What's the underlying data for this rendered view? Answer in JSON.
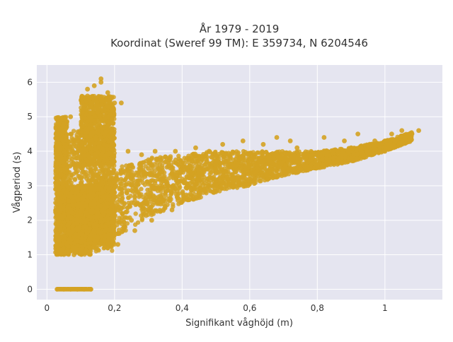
{
  "chart_data": {
    "type": "scatter",
    "title_line1": "År 1979 - 2019",
    "title_line2": "Koordinat (Sweref 99 TM): E 359734, N 6204546",
    "xlabel": "Signifikant våghöjd (m)",
    "ylabel": "Vågperiod (s)",
    "xlim": [
      -0.03,
      1.17
    ],
    "ylim": [
      -0.3,
      6.5
    ],
    "x_ticks": [
      0,
      0.2,
      0.4,
      0.6,
      0.8,
      1
    ],
    "x_tick_labels": [
      "0",
      "0,2",
      "0,4",
      "0,6",
      "0,8",
      "1"
    ],
    "y_ticks": [
      0,
      1,
      2,
      3,
      4,
      5,
      6
    ],
    "y_tick_labels": [
      "0",
      "1",
      "2",
      "3",
      "4",
      "5",
      "6"
    ],
    "grid": true,
    "colors": {
      "marker": "#d4a222",
      "plot_background": "#e5e5f0",
      "grid": "#ffffff"
    },
    "series": [
      {
        "x": [
          0.03,
          0.05,
          0.07,
          0.09,
          0.11,
          0.13,
          0.03,
          0.04,
          0.05,
          0.06,
          0.07,
          0.08,
          0.09,
          0.1,
          0.11,
          0.12,
          0.13,
          0.14,
          0.15,
          0.16,
          0.17,
          0.18,
          0.2,
          0.22,
          0.25,
          0.28,
          0.3,
          0.33,
          0.36,
          0.4,
          0.43,
          0.46,
          0.5,
          0.53,
          0.56,
          0.6,
          0.63,
          0.66,
          0.7,
          0.73,
          0.76,
          0.8,
          0.83,
          0.86,
          0.9,
          0.93,
          0.96,
          1.0,
          1.03,
          1.06,
          1.08,
          1.1,
          0.2,
          0.25,
          0.3,
          0.35,
          0.4,
          0.45,
          0.5,
          0.55,
          0.6,
          0.65,
          0.7,
          0.75,
          0.8,
          0.85,
          0.9,
          0.95,
          1.0,
          0.12,
          0.14,
          0.16,
          0.18,
          0.13,
          0.15,
          0.17,
          0.16,
          0.12,
          0.18,
          0.2,
          0.22,
          0.16,
          0.17,
          0.24,
          0.28,
          0.32,
          0.38,
          0.44,
          0.48,
          0.52,
          0.58,
          0.64,
          0.68,
          0.72,
          0.74,
          0.82,
          0.88,
          0.92,
          0.97,
          1.02,
          1.05,
          0.04,
          0.06,
          0.08,
          0.1,
          0.03,
          0.05,
          0.07,
          0.09,
          0.11,
          0.13,
          0.15,
          0.18,
          0.21,
          0.26,
          0.31,
          0.37,
          0.42
        ],
        "y": [
          0,
          0,
          0,
          0,
          0,
          0,
          1.5,
          2.1,
          3.2,
          4.1,
          2.7,
          1.2,
          3.8,
          2.4,
          1.8,
          4.6,
          5.1,
          3.3,
          2.2,
          5.5,
          4.9,
          2.6,
          2.8,
          2.9,
          3.2,
          3.3,
          3.5,
          3.5,
          3.6,
          3.6,
          3.7,
          3.5,
          3.6,
          3.7,
          3.6,
          3.6,
          3.7,
          3.7,
          3.8,
          3.8,
          3.9,
          3.9,
          4.0,
          4.0,
          4.1,
          4.1,
          4.2,
          4.3,
          4.3,
          4.4,
          4.5,
          4.6,
          1.6,
          2.0,
          2.3,
          2.4,
          2.6,
          2.8,
          3.0,
          3.1,
          3.2,
          3.3,
          3.4,
          3.5,
          3.6,
          3.7,
          3.8,
          3.9,
          4.0,
          5.8,
          5.9,
          6.0,
          5.7,
          5.4,
          5.2,
          5.0,
          6.1,
          5.6,
          5.3,
          5.4,
          5.4,
          4.4,
          4.5,
          4.0,
          3.9,
          4.0,
          4.0,
          4.1,
          4.0,
          4.2,
          4.3,
          4.2,
          4.4,
          4.3,
          4.1,
          4.4,
          4.3,
          4.5,
          4.3,
          4.5,
          4.6,
          1.1,
          1.3,
          1.0,
          1.1,
          4.5,
          4.8,
          5.0,
          4.3,
          3.6,
          2.9,
          1.5,
          1.2,
          1.3,
          1.7,
          2.0,
          2.3,
          2.6
        ]
      }
    ],
    "density_bands": [
      {
        "x": [
          0.025,
          0.06
        ],
        "y": [
          1.0,
          5.0
        ],
        "density": 0.95
      },
      {
        "x": [
          0.06,
          0.13
        ],
        "y": [
          1.0,
          3.0
        ],
        "density": 0.95
      },
      {
        "x": [
          0.06,
          0.2
        ],
        "y": [
          1.1,
          4.6
        ],
        "density": 0.8
      },
      {
        "x": [
          0.1,
          0.2
        ],
        "y": [
          3.6,
          5.6
        ],
        "density": 0.9
      },
      {
        "x": [
          0.12,
          0.2
        ],
        "y": [
          1.3,
          3.0
        ],
        "density": 0.9
      }
    ],
    "trend_band": {
      "x": [
        0.13,
        0.2,
        0.3,
        0.4,
        0.5,
        0.6,
        0.7,
        0.8,
        0.9,
        1.0,
        1.08
      ],
      "y_low": [
        1.3,
        1.5,
        2.1,
        2.5,
        2.8,
        3.0,
        3.3,
        3.5,
        3.7,
        4.0,
        4.3
      ],
      "y_high": [
        3.2,
        3.5,
        3.8,
        3.9,
        4.0,
        4.0,
        4.0,
        4.0,
        4.1,
        4.3,
        4.55
      ]
    }
  }
}
